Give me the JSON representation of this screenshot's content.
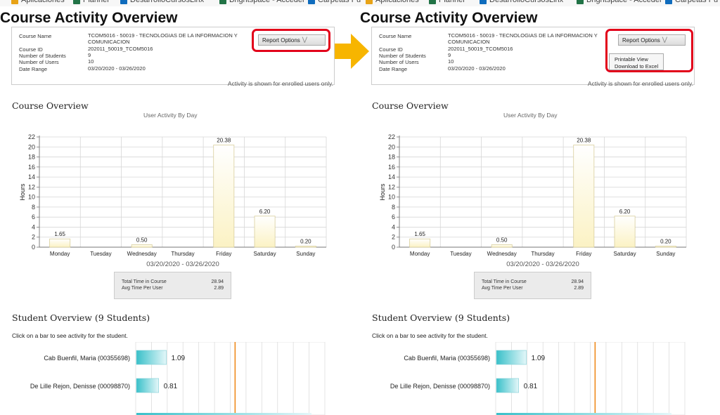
{
  "bookmarks": [
    {
      "label": "Aplicaciones",
      "color": "#e8a317"
    },
    {
      "label": "Planner",
      "color": "#217346"
    },
    {
      "label": "DesarrolloCursosLinx",
      "color": "#0f6cbd"
    },
    {
      "label": "Brightspace - Acceder",
      "color": "#217346"
    },
    {
      "label": "Carpetas Pu",
      "color": "#0f6cbd"
    }
  ],
  "page_title": "Course Activity Overview",
  "course_info": {
    "rows": [
      {
        "label": "Course Name",
        "value": "TCOM5016 - 50019 - TECNOLOGIAS DE LA INFORMACION Y COMUNICACION"
      },
      {
        "label": "Course ID",
        "value": "202011_50019_TCOM5016"
      },
      {
        "label": "Number of Students",
        "value": "9"
      },
      {
        "label": "Number of Users",
        "value": "10"
      },
      {
        "label": "Date Range",
        "value": "03/20/2020 - 03/26/2020"
      }
    ]
  },
  "report_options": {
    "label": "Report Options",
    "menu": [
      "Printable View",
      "Download to Excel"
    ]
  },
  "enrolled_note": "Activity is shown for enrolled users only.",
  "course_overview": {
    "title": "Course Overview",
    "chart_subtitle": "User Activity By Day",
    "date_range": "03/20/2020 - 03/26/2020"
  },
  "summary": {
    "rows": [
      {
        "label": "Total Time in Course",
        "value": "28.94"
      },
      {
        "label": "Avg Time Per User",
        "value": "2.89"
      }
    ]
  },
  "student_overview": {
    "title": "Student Overview (9 Students)",
    "instruction": "Click on a bar to see activity for the student."
  },
  "colors": {
    "accent_red": "#e2001a",
    "arrow": "#f7b500",
    "bar_day": "#fbf2c4",
    "bar_student": "#39c0c9"
  },
  "chart_data": [
    {
      "type": "bar",
      "title": "User Activity By Day",
      "xlabel": "03/20/2020 - 03/26/2020",
      "ylabel": "Hours",
      "categories": [
        "Monday",
        "Tuesday",
        "Wednesday",
        "Thursday",
        "Friday",
        "Saturday",
        "Sunday"
      ],
      "values": [
        1.65,
        0,
        0.5,
        0,
        20.38,
        6.2,
        0.2
      ],
      "data_labels": [
        "1.65",
        "",
        "0.50",
        "",
        "20.38",
        "6.20",
        "0.20"
      ],
      "y_ticks": [
        "0",
        "2",
        "4",
        "6",
        "8",
        "10",
        "12",
        "14",
        "16",
        "18",
        "20",
        "22"
      ],
      "ylim": [
        0,
        22
      ],
      "grid": true
    },
    {
      "type": "bar",
      "orientation": "horizontal",
      "categories": [
        "Cab Buenfil, Maria (00355698)",
        "De Lille Rejon, Denisse (00098870)"
      ],
      "values": [
        1.09,
        0.81
      ],
      "data_labels": [
        "1.09",
        "0.81"
      ],
      "grid": true
    }
  ]
}
